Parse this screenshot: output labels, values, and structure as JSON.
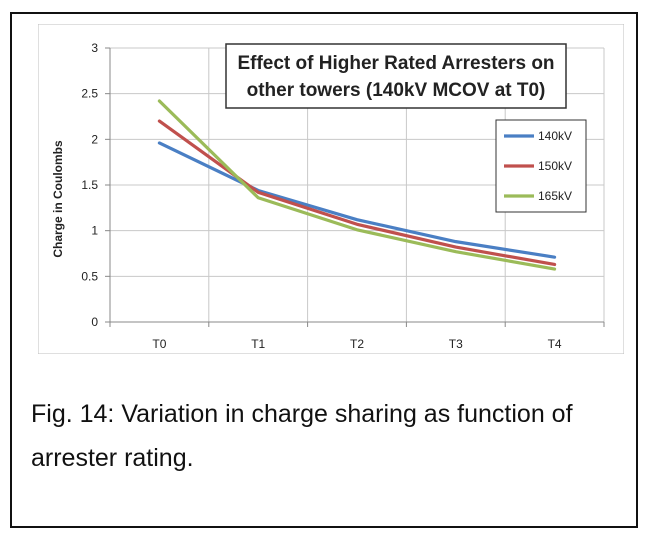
{
  "caption": "Fig. 14: Variation in charge sharing as function of arrester rating.",
  "chart_data": {
    "type": "line",
    "title_lines": [
      "Effect of Higher Rated Arresters on",
      "other towers  (140kV MCOV at T0)"
    ],
    "ylabel": "Charge in Coulombs",
    "xlabel": "",
    "categories": [
      "T0",
      "T1",
      "T2",
      "T3",
      "T4"
    ],
    "ylim": [
      0,
      3
    ],
    "yticks": [
      "0",
      "0.5",
      "1",
      "1.5",
      "2",
      "2.5",
      "3"
    ],
    "grid": true,
    "legend_position": "right",
    "series": [
      {
        "name": "140kV",
        "color": "#4a7fc4",
        "values": [
          1.96,
          1.44,
          1.12,
          0.88,
          0.71
        ]
      },
      {
        "name": "150kV",
        "color": "#c0504d",
        "values": [
          2.2,
          1.42,
          1.07,
          0.82,
          0.63
        ]
      },
      {
        "name": "165kV",
        "color": "#9bbb59",
        "values": [
          2.42,
          1.36,
          1.01,
          0.77,
          0.58
        ]
      }
    ]
  }
}
